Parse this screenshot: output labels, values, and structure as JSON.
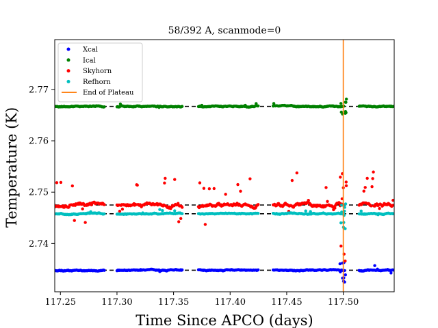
{
  "chart_data": {
    "type": "scatter",
    "title": "58/392 A, scanmode=0",
    "xlabel": "Time Since APCO (days)",
    "ylabel": "Temperature (K)",
    "xlim": [
      117.245,
      117.545
    ],
    "ylim": [
      2.7306,
      2.7797
    ],
    "x_ticks": [
      117.25,
      117.3,
      117.35,
      117.4,
      117.45,
      117.5
    ],
    "x_tick_labels": [
      "117.25",
      "117.30",
      "117.35",
      "117.40",
      "117.45",
      "117.50"
    ],
    "y_ticks": [
      2.74,
      2.75,
      2.76,
      2.77
    ],
    "y_tick_labels": [
      "2.74",
      "2.75",
      "2.76",
      "2.77"
    ],
    "grid": false,
    "legend_position": "top-left",
    "segments": [
      [
        117.245,
        117.289
      ],
      [
        117.3,
        117.358
      ],
      [
        117.372,
        117.425
      ],
      [
        117.438,
        117.501
      ],
      [
        117.514,
        117.545
      ]
    ],
    "series": [
      {
        "name": "Xcal",
        "color": "#0000ff",
        "baseline": 2.7348,
        "noise": 0.00012,
        "spike_prob": 0.02,
        "spike_amp": 0.0008,
        "seed": 11
      },
      {
        "name": "Ical",
        "color": "#008000",
        "baseline": 2.7667,
        "noise": 0.00012,
        "spike_prob": 0.01,
        "spike_amp": 0.0004,
        "seed": 23
      },
      {
        "name": "Skyhorn",
        "color": "#ff0000",
        "baseline": 2.7475,
        "noise": 0.00035,
        "spike_prob": 0.12,
        "spike_amp": 0.0055,
        "seed": 37
      },
      {
        "name": "Refhorn",
        "color": "#00bfbf",
        "baseline": 2.7458,
        "noise": 0.00012,
        "spike_prob": 0.02,
        "spike_amp": 0.0007,
        "seed": 51
      }
    ],
    "end_of_plateau": {
      "name": "End of Plateau",
      "x": 117.5,
      "color": "#ff7f0e"
    },
    "reference_lines": [
      2.7348,
      2.7667,
      2.7475,
      2.7458
    ],
    "reference_line_color": "#000000"
  }
}
